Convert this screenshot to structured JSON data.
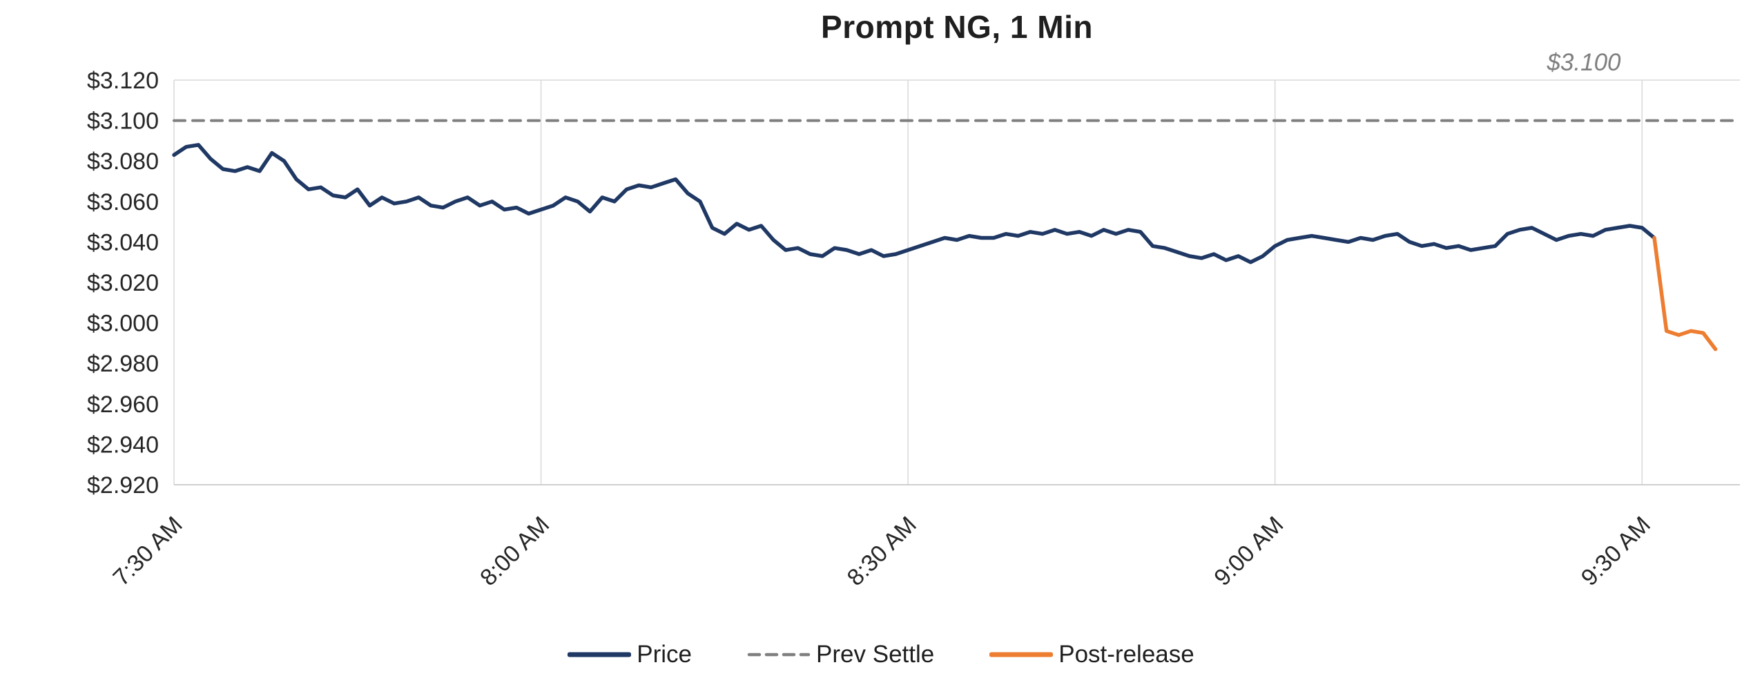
{
  "chart_data": {
    "type": "line",
    "title": "Prompt NG, 1 Min",
    "xlabel": "",
    "ylabel": "",
    "x_unit": "minutes_since_midnight",
    "xlim": [
      450,
      578
    ],
    "ylim": [
      2.92,
      3.12
    ],
    "grid": "vertical-only",
    "legend_position": "bottom-center",
    "colors": {
      "grid": "#D9D9D9",
      "axis": "#BFBFBF",
      "text": "#262626",
      "title": "#1F1F1F",
      "annotation": "#7F7F7F"
    },
    "annotation": {
      "text": "$3.100",
      "value": 3.1,
      "position": "top-right"
    },
    "xticks": [
      {
        "x": 450,
        "label": "7:30 AM"
      },
      {
        "x": 480,
        "label": "8:00 AM"
      },
      {
        "x": 510,
        "label": "8:30 AM"
      },
      {
        "x": 540,
        "label": "9:00 AM"
      },
      {
        "x": 570,
        "label": "9:30 AM"
      }
    ],
    "yticks": [
      {
        "value": 3.12,
        "label": "$3.120"
      },
      {
        "value": 3.1,
        "label": "$3.100"
      },
      {
        "value": 3.08,
        "label": "$3.080"
      },
      {
        "value": 3.06,
        "label": "$3.060"
      },
      {
        "value": 3.04,
        "label": "$3.040"
      },
      {
        "value": 3.02,
        "label": "$3.020"
      },
      {
        "value": 3.0,
        "label": "$3.000"
      },
      {
        "value": 2.98,
        "label": "$2.980"
      },
      {
        "value": 2.96,
        "label": "$2.960"
      },
      {
        "value": 2.94,
        "label": "$2.940"
      },
      {
        "value": 2.92,
        "label": "$2.920"
      }
    ],
    "series": [
      {
        "name": "Price",
        "color": "#1F3864",
        "style": "solid",
        "x_start": 450,
        "x_step": 1,
        "y": [
          3.083,
          3.087,
          3.088,
          3.081,
          3.076,
          3.075,
          3.077,
          3.075,
          3.084,
          3.08,
          3.071,
          3.066,
          3.067,
          3.063,
          3.062,
          3.066,
          3.058,
          3.062,
          3.059,
          3.06,
          3.062,
          3.058,
          3.057,
          3.06,
          3.062,
          3.058,
          3.06,
          3.056,
          3.057,
          3.054,
          3.056,
          3.058,
          3.062,
          3.06,
          3.055,
          3.062,
          3.06,
          3.066,
          3.068,
          3.067,
          3.069,
          3.071,
          3.064,
          3.06,
          3.047,
          3.044,
          3.049,
          3.046,
          3.048,
          3.041,
          3.036,
          3.037,
          3.034,
          3.033,
          3.037,
          3.036,
          3.034,
          3.036,
          3.033,
          3.034,
          3.036,
          3.038,
          3.04,
          3.042,
          3.041,
          3.043,
          3.042,
          3.042,
          3.044,
          3.043,
          3.045,
          3.044,
          3.046,
          3.044,
          3.045,
          3.043,
          3.046,
          3.044,
          3.046,
          3.045,
          3.038,
          3.037,
          3.035,
          3.033,
          3.032,
          3.034,
          3.031,
          3.033,
          3.03,
          3.033,
          3.038,
          3.041,
          3.042,
          3.043,
          3.042,
          3.041,
          3.04,
          3.042,
          3.041,
          3.043,
          3.044,
          3.04,
          3.038,
          3.039,
          3.037,
          3.038,
          3.036,
          3.037,
          3.038,
          3.044,
          3.046,
          3.047,
          3.044,
          3.041,
          3.043,
          3.044,
          3.043,
          3.046,
          3.047,
          3.048,
          3.047,
          3.042
        ]
      },
      {
        "name": "Prev Settle",
        "color": "#7F7F7F",
        "style": "dashed",
        "x": [
          450,
          578
        ],
        "y": [
          3.1,
          3.1
        ]
      },
      {
        "name": "Post-release",
        "color": "#ED7D31",
        "style": "solid",
        "x": [
          571,
          572,
          573,
          574,
          575,
          576
        ],
        "y": [
          3.042,
          2.996,
          2.994,
          2.996,
          2.995,
          2.987
        ]
      }
    ]
  },
  "legend": [
    {
      "label": "Price",
      "color": "#1F3864",
      "style": "solid"
    },
    {
      "label": "Prev Settle",
      "color": "#7F7F7F",
      "style": "dashed"
    },
    {
      "label": "Post-release",
      "color": "#ED7D31",
      "style": "solid"
    }
  ]
}
